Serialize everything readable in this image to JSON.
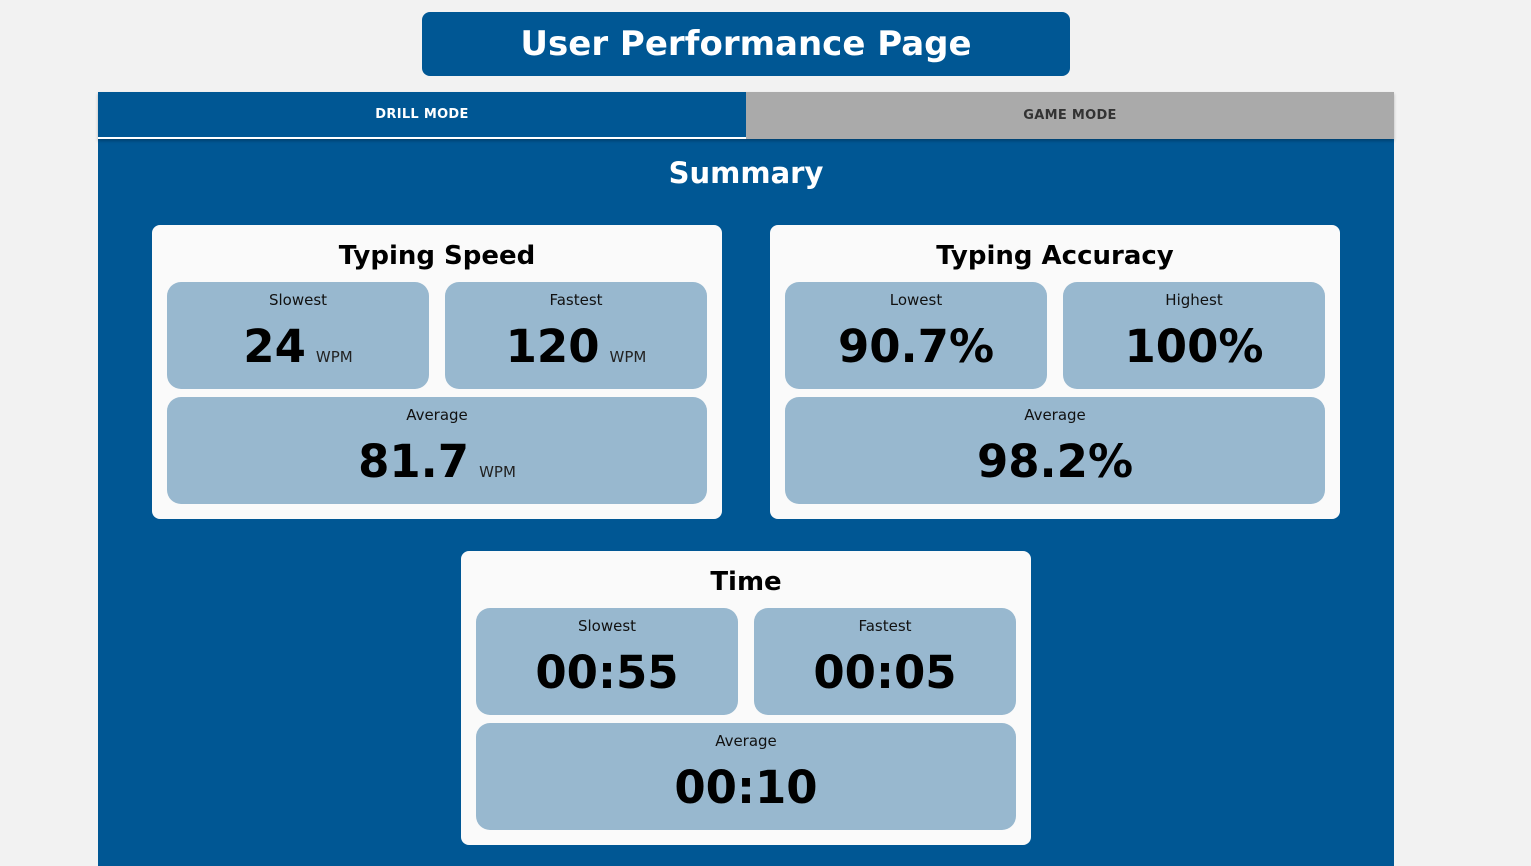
{
  "header": {
    "title": "User Performance Page"
  },
  "tabs": [
    {
      "label": "DRILL MODE",
      "active": true
    },
    {
      "label": "GAME MODE",
      "active": false
    }
  ],
  "summary": {
    "title": "Summary"
  },
  "cards": {
    "speed": {
      "title": "Typing Speed",
      "slowest": {
        "label": "Slowest",
        "value": "24",
        "unit": "WPM"
      },
      "fastest": {
        "label": "Fastest",
        "value": "120",
        "unit": "WPM"
      },
      "average": {
        "label": "Average",
        "value": "81.7",
        "unit": "WPM"
      }
    },
    "accuracy": {
      "title": "Typing Accuracy",
      "lowest": {
        "label": "Lowest",
        "value": "90.7%"
      },
      "highest": {
        "label": "Highest",
        "value": "100%"
      },
      "average": {
        "label": "Average",
        "value": "98.2%"
      }
    },
    "time": {
      "title": "Time",
      "slowest": {
        "label": "Slowest",
        "value": "00:55"
      },
      "fastest": {
        "label": "Fastest",
        "value": "00:05"
      },
      "average": {
        "label": "Average",
        "value": "00:10"
      }
    }
  },
  "colors": {
    "primary": "#005794",
    "tab_inactive": "#aaaaaa",
    "card_bg": "#fafafa",
    "stat_bg": "#98b8cf",
    "page_bg": "#f2f2f2"
  }
}
